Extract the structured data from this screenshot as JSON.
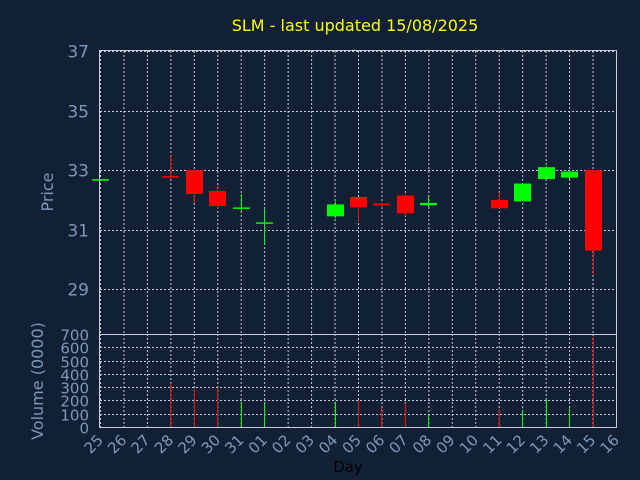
{
  "chart_data": {
    "type": "candlestick",
    "title": "SLM - last updated 15/08/2025",
    "price_axis": {
      "label": "Price",
      "ylim": [
        27.5,
        37
      ],
      "ticks": [
        29,
        31,
        33,
        35,
        37
      ]
    },
    "volume_axis": {
      "label": "Volume (0000)",
      "ylim": [
        0,
        700
      ],
      "ticks": [
        0,
        100,
        200,
        300,
        400,
        500,
        600,
        700
      ]
    },
    "x_axis": {
      "label": "Day",
      "tick_labels": [
        "25",
        "26",
        "27",
        "28",
        "29",
        "30",
        "31",
        "01",
        "02",
        "03",
        "04",
        "05",
        "06",
        "07",
        "08",
        "09",
        "10",
        "11",
        "12",
        "13",
        "14",
        "15",
        "16"
      ]
    },
    "colors": {
      "up": "#00ff00",
      "down": "#ff0000",
      "background": "#112035",
      "title": "#ffff00",
      "axis_text": "#7e98b8",
      "grid": "#c8ccd4"
    },
    "grid": true,
    "candles": [
      {
        "day": "25",
        "open": 32.7,
        "high": 32.7,
        "low": 32.7,
        "close": 32.7,
        "volume": 0
      },
      {
        "day": "28",
        "open": 32.8,
        "high": 33.5,
        "low": 32.7,
        "close": 32.75,
        "volume": 330
      },
      {
        "day": "29",
        "open": 33.0,
        "high": 33.0,
        "low": 31.9,
        "close": 32.2,
        "volume": 285
      },
      {
        "day": "30",
        "open": 32.3,
        "high": 32.4,
        "low": 31.7,
        "close": 31.8,
        "volume": 295
      },
      {
        "day": "31",
        "open": 31.7,
        "high": 32.2,
        "low": 31.6,
        "close": 31.75,
        "volume": 190
      },
      {
        "day": "01",
        "open": 31.2,
        "high": 31.7,
        "low": 30.5,
        "close": 31.25,
        "volume": 185
      },
      {
        "day": "04",
        "open": 31.45,
        "high": 31.95,
        "low": 31.4,
        "close": 31.85,
        "volume": 190
      },
      {
        "day": "05",
        "open": 32.1,
        "high": 32.1,
        "low": 31.3,
        "close": 31.75,
        "volume": 205
      },
      {
        "day": "06",
        "open": 31.88,
        "high": 31.9,
        "low": 31.72,
        "close": 31.82,
        "volume": 150
      },
      {
        "day": "07",
        "open": 32.15,
        "high": 32.2,
        "low": 31.45,
        "close": 31.55,
        "volume": 180
      },
      {
        "day": "08",
        "open": 31.82,
        "high": 32.1,
        "low": 31.75,
        "close": 31.9,
        "volume": 90
      },
      {
        "day": "11",
        "open": 32.0,
        "high": 32.25,
        "low": 31.7,
        "close": 31.72,
        "volume": 135
      },
      {
        "day": "12",
        "open": 31.95,
        "high": 32.55,
        "low": 31.95,
        "close": 32.55,
        "volume": 130
      },
      {
        "day": "13",
        "open": 32.7,
        "high": 33.15,
        "low": 32.7,
        "close": 33.1,
        "volume": 205
      },
      {
        "day": "14",
        "open": 32.75,
        "high": 33.0,
        "low": 32.7,
        "close": 32.95,
        "volume": 140
      },
      {
        "day": "15",
        "open": 33.0,
        "high": 33.0,
        "low": 29.5,
        "close": 30.3,
        "volume": 680
      }
    ]
  }
}
